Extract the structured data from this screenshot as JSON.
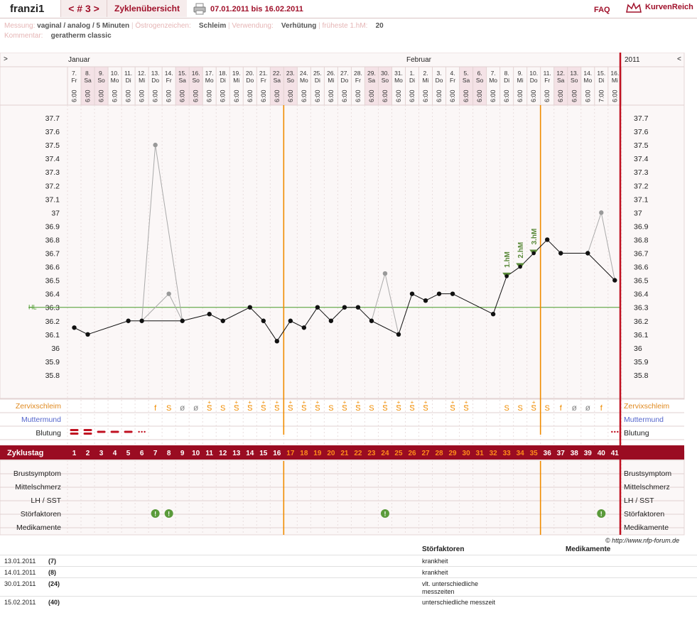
{
  "header": {
    "user": "franzi1",
    "cycle_nav": "< # 3 >",
    "overview_link": "Zyklenübersicht",
    "date_range": "07.01.2011 bis 16.02.2011",
    "faq": "FAQ",
    "brand": "KurvenReich",
    "icons": {
      "print": "printer-icon",
      "logo": "crown-icon"
    }
  },
  "meta": {
    "messung_label": "Messung:",
    "messung_value": "vaginal / analog / 5 Minuten",
    "oestrogen_label": "Östrogenzeichen:",
    "oestrogen_value": "Schleim",
    "verwendung_label": "Verwendung:",
    "verwendung_value": "Verhütung",
    "hm_label": "früheste 1.hM:",
    "hm_value": "20",
    "kommentar_label": "Kommentar:",
    "kommentar_value": "geratherm classic"
  },
  "nav": {
    "left": ">",
    "right": "<"
  },
  "months": {
    "jan": "Januar",
    "feb": "Februar",
    "year": "2011"
  },
  "colors": {
    "accent": "#a0102a",
    "orange": "#f08c00",
    "green": "#5a8a3a",
    "hl": "#4a9a2a",
    "weekend": "#f4e2e6"
  },
  "days": [
    {
      "d": "7.",
      "w": "Fr",
      "t": "6:00"
    },
    {
      "d": "8.",
      "w": "Sa",
      "t": "6:00"
    },
    {
      "d": "9.",
      "w": "So",
      "t": "6:00"
    },
    {
      "d": "10.",
      "w": "Mo",
      "t": "6:00"
    },
    {
      "d": "11.",
      "w": "Di",
      "t": "6:00"
    },
    {
      "d": "12.",
      "w": "Mi",
      "t": "6:00"
    },
    {
      "d": "13.",
      "w": "Do",
      "t": "6:00"
    },
    {
      "d": "14.",
      "w": "Fr",
      "t": "6:00"
    },
    {
      "d": "15.",
      "w": "Sa",
      "t": "6:00"
    },
    {
      "d": "16.",
      "w": "So",
      "t": "6:00"
    },
    {
      "d": "17.",
      "w": "Mo",
      "t": "6:00"
    },
    {
      "d": "18.",
      "w": "Di",
      "t": "6:00"
    },
    {
      "d": "19.",
      "w": "Mi",
      "t": "6:00"
    },
    {
      "d": "20.",
      "w": "Do",
      "t": "6:00"
    },
    {
      "d": "21.",
      "w": "Fr",
      "t": "6:00"
    },
    {
      "d": "22.",
      "w": "Sa",
      "t": "6:00"
    },
    {
      "d": "23.",
      "w": "So",
      "t": "6:00"
    },
    {
      "d": "24.",
      "w": "Mo",
      "t": "6:00"
    },
    {
      "d": "25.",
      "w": "Di",
      "t": "6:00"
    },
    {
      "d": "26.",
      "w": "Mi",
      "t": "6:00"
    },
    {
      "d": "27.",
      "w": "Do",
      "t": "6:00"
    },
    {
      "d": "28.",
      "w": "Fr",
      "t": "6:00"
    },
    {
      "d": "29.",
      "w": "Sa",
      "t": "6:00"
    },
    {
      "d": "30.",
      "w": "So",
      "t": "6:00"
    },
    {
      "d": "31.",
      "w": "Mo",
      "t": "6:00"
    },
    {
      "d": "1.",
      "w": "Di",
      "t": "6:00"
    },
    {
      "d": "2.",
      "w": "Mi",
      "t": "6:00"
    },
    {
      "d": "3.",
      "w": "Do",
      "t": "6:00"
    },
    {
      "d": "4.",
      "w": "Fr",
      "t": "6:00"
    },
    {
      "d": "5.",
      "w": "Sa",
      "t": "6:00"
    },
    {
      "d": "6.",
      "w": "So",
      "t": "6:00"
    },
    {
      "d": "7.",
      "w": "Mo",
      "t": "6:00"
    },
    {
      "d": "8.",
      "w": "Di",
      "t": "6:00"
    },
    {
      "d": "9.",
      "w": "Mi",
      "t": "6:00"
    },
    {
      "d": "10.",
      "w": "Do",
      "t": "6:00"
    },
    {
      "d": "11.",
      "w": "Fr",
      "t": "6:00"
    },
    {
      "d": "12.",
      "w": "Sa",
      "t": "6:00"
    },
    {
      "d": "13.",
      "w": "So",
      "t": "6:00"
    },
    {
      "d": "14.",
      "w": "Mo",
      "t": "6:00"
    },
    {
      "d": "15.",
      "w": "Di",
      "t": "7:00"
    },
    {
      "d": "16.",
      "w": "Mi",
      "t": "6:00"
    }
  ],
  "chart_data": {
    "type": "line",
    "ylim": [
      35.7,
      37.8
    ],
    "yticks": [
      "37.7",
      "37.6",
      "37.5",
      "37.4",
      "37.3",
      "37.2",
      "37.1",
      "37",
      "36.9",
      "36.8",
      "36.7",
      "36.6",
      "36.5",
      "36.4",
      "36.3",
      "36.2",
      "36.1",
      "36",
      "35.9",
      "35.8"
    ],
    "hl": {
      "label": "HL",
      "value": 36.3
    },
    "points": [
      {
        "day": 1,
        "v": 36.15,
        "s": "n"
      },
      {
        "day": 2,
        "v": 36.1,
        "s": "n"
      },
      {
        "day": 5,
        "v": 36.2,
        "s": "n"
      },
      {
        "day": 6,
        "v": 36.2,
        "s": "n"
      },
      {
        "day": 7,
        "v": 37.5,
        "s": "g"
      },
      {
        "day": 8,
        "v": 36.4,
        "s": "g"
      },
      {
        "day": 9,
        "v": 36.2,
        "s": "n"
      },
      {
        "day": 11,
        "v": 36.25,
        "s": "n"
      },
      {
        "day": 12,
        "v": 36.2,
        "s": "n"
      },
      {
        "day": 14,
        "v": 36.3,
        "s": "n"
      },
      {
        "day": 15,
        "v": 36.2,
        "s": "n"
      },
      {
        "day": 16,
        "v": 36.05,
        "s": "n"
      },
      {
        "day": 17,
        "v": 36.2,
        "s": "n"
      },
      {
        "day": 18,
        "v": 36.15,
        "s": "n"
      },
      {
        "day": 19,
        "v": 36.3,
        "s": "n"
      },
      {
        "day": 20,
        "v": 36.2,
        "s": "n"
      },
      {
        "day": 21,
        "v": 36.3,
        "s": "n"
      },
      {
        "day": 22,
        "v": 36.3,
        "s": "n"
      },
      {
        "day": 23,
        "v": 36.2,
        "s": "n"
      },
      {
        "day": 24,
        "v": 36.55,
        "s": "g"
      },
      {
        "day": 25,
        "v": 36.1,
        "s": "n"
      },
      {
        "day": 26,
        "v": 36.4,
        "s": "n"
      },
      {
        "day": 27,
        "v": 36.35,
        "s": "n"
      },
      {
        "day": 28,
        "v": 36.4,
        "s": "n"
      },
      {
        "day": 29,
        "v": 36.4,
        "s": "n"
      },
      {
        "day": 32,
        "v": 36.25,
        "s": "n"
      },
      {
        "day": 33,
        "v": 36.53,
        "s": "h"
      },
      {
        "day": 34,
        "v": 36.6,
        "s": "h"
      },
      {
        "day": 35,
        "v": 36.7,
        "s": "h"
      },
      {
        "day": 36,
        "v": 36.8,
        "s": "n"
      },
      {
        "day": 37,
        "v": 36.7,
        "s": "n"
      },
      {
        "day": 39,
        "v": 36.7,
        "s": "n"
      },
      {
        "day": 40,
        "v": 37.0,
        "s": "g"
      },
      {
        "day": 41,
        "v": 36.5,
        "s": "n"
      }
    ],
    "hm_labels": [
      {
        "day": 33,
        "text": "1.hM"
      },
      {
        "day": 34,
        "text": "2.hM"
      },
      {
        "day": 35,
        "text": "3.hM"
      }
    ],
    "cycle_days": [
      "1",
      "2",
      "3",
      "4",
      "5",
      "6",
      "7",
      "8",
      "9",
      "10",
      "11",
      "12",
      "13",
      "14",
      "15",
      "16",
      "17",
      "18",
      "19",
      "20",
      "21",
      "22",
      "23",
      "24",
      "25",
      "26",
      "27",
      "28",
      "29",
      "30",
      "31",
      "32",
      "33",
      "34",
      "35",
      "36",
      "37",
      "38",
      "39",
      "40",
      "41"
    ],
    "zervix": [
      {
        "day": 7,
        "s": "f"
      },
      {
        "day": 8,
        "s": "S"
      },
      {
        "day": 9,
        "s": "ø"
      },
      {
        "day": 10,
        "s": "ø"
      },
      {
        "day": 11,
        "s": "S+"
      },
      {
        "day": 12,
        "s": "S"
      },
      {
        "day": 13,
        "s": "S+"
      },
      {
        "day": 14,
        "s": "S+"
      },
      {
        "day": 15,
        "s": "S+"
      },
      {
        "day": 16,
        "s": "S+"
      },
      {
        "day": 17,
        "s": "S+"
      },
      {
        "day": 18,
        "s": "S+"
      },
      {
        "day": 19,
        "s": "S+"
      },
      {
        "day": 20,
        "s": "S"
      },
      {
        "day": 21,
        "s": "S+"
      },
      {
        "day": 22,
        "s": "S+"
      },
      {
        "day": 23,
        "s": "S"
      },
      {
        "day": 24,
        "s": "S+"
      },
      {
        "day": 25,
        "s": "S+"
      },
      {
        "day": 26,
        "s": "S+"
      },
      {
        "day": 27,
        "s": "S+"
      },
      {
        "day": 29,
        "s": "S+"
      },
      {
        "day": 30,
        "s": "S+"
      },
      {
        "day": 33,
        "s": "S"
      },
      {
        "day": 34,
        "s": "S"
      },
      {
        "day": 35,
        "s": "S+"
      },
      {
        "day": 36,
        "s": "S"
      },
      {
        "day": 37,
        "s": "f"
      },
      {
        "day": 38,
        "s": "ø"
      },
      {
        "day": 39,
        "s": "ø"
      },
      {
        "day": 40,
        "s": "f"
      }
    ],
    "blutung": [
      {
        "day": 1,
        "s": "heavy"
      },
      {
        "day": 2,
        "s": "heavy"
      },
      {
        "day": 3,
        "s": "mid"
      },
      {
        "day": 4,
        "s": "mid"
      },
      {
        "day": 5,
        "s": "mid"
      },
      {
        "day": 6,
        "s": "dots"
      },
      {
        "day": 41,
        "s": "dots"
      }
    ],
    "stoer_days": [
      7,
      8,
      24,
      40
    ],
    "orange_lines": [
      16,
      35
    ]
  },
  "rows": {
    "zervix": "Zervixschleim",
    "mutter": "Muttermund",
    "blutung": "Blutung",
    "zyklustag": "Zyklustag",
    "brust": "Brustsymptom",
    "mittel": "Mittelschmerz",
    "lh": "LH / SST",
    "stoer": "Störfaktoren",
    "medi": "Medikamente"
  },
  "footer": {
    "copyright": "© http://www.nfp-forum.de",
    "col_stoer": "Störfaktoren",
    "col_medi": "Medikamente",
    "notes": [
      {
        "date": "13.01.2011",
        "num": "(7)",
        "stoer": "krankheit"
      },
      {
        "date": "14.01.2011",
        "num": "(8)",
        "stoer": "krankheit"
      },
      {
        "date": "30.01.2011",
        "num": "(24)",
        "stoer": "vlt. unterschiedliche messzeiten"
      },
      {
        "date": "15.02.2011",
        "num": "(40)",
        "stoer": "unterschiedliche messzeit"
      }
    ]
  }
}
